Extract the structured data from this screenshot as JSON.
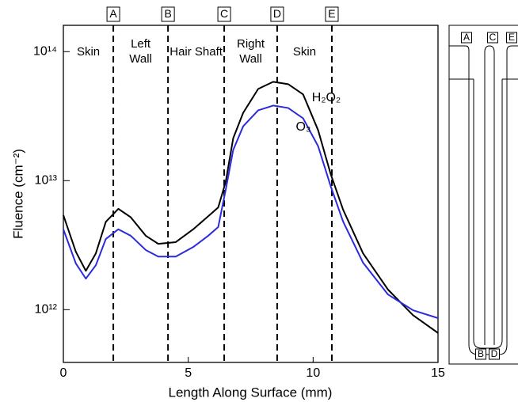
{
  "chart_data": {
    "type": "line",
    "x_label": "Length Along Surface  (mm)",
    "y_label": "Fluence (cm⁻²)",
    "log_y": true,
    "xlim": [
      0,
      15
    ],
    "xticks": [
      0,
      5,
      10,
      15
    ],
    "ylim": [
      390000000000.0,
      160000000000000.0
    ],
    "yticks": [
      {
        "value": 1000000000000.0,
        "label": "10¹²"
      },
      {
        "value": 10000000000000.0,
        "label": "10¹³"
      },
      {
        "value": 100000000000000.0,
        "label": "10¹⁴"
      }
    ],
    "markers": [
      {
        "x": 2.0,
        "label": "A"
      },
      {
        "x": 4.19,
        "label": "B"
      },
      {
        "x": 6.44,
        "label": "C"
      },
      {
        "x": 8.56,
        "label": "D"
      },
      {
        "x": 10.75,
        "label": "E"
      }
    ],
    "regions": [
      [
        "Skin"
      ],
      [
        "Left",
        "Wall"
      ],
      [
        "Hair Shaft"
      ],
      [
        "Right",
        "Wall"
      ],
      [
        "Skin"
      ]
    ],
    "x": [
      0,
      0.5,
      0.9,
      1.3,
      1.7,
      2.2,
      2.7,
      3.3,
      3.8,
      4.5,
      5.2,
      5.8,
      6.2,
      6.5,
      6.8,
      7.2,
      7.8,
      8.4,
      9.0,
      9.6,
      10.2,
      10.7,
      11.2,
      12,
      13,
      14,
      15
    ],
    "series": [
      {
        "name": "H₂O₂",
        "color": "#000000",
        "values": [
          5400000000000.0,
          2810000000000.0,
          2000000000000.0,
          2730000000000.0,
          4800000000000.0,
          6050000000000.0,
          5200000000000.0,
          3740000000000.0,
          3240000000000.0,
          3340000000000.0,
          4200000000000.0,
          5300000000000.0,
          6200000000000.0,
          9800000000000.0,
          21300000000000.0,
          33600000000000.0,
          51400000000000.0,
          58400000000000.0,
          56000000000000.0,
          46600000000000.0,
          24600000000000.0,
          11300000000000.0,
          5960000000000.0,
          2730000000000.0,
          1430000000000.0,
          906000000000.0,
          660000000000.0
        ]
      },
      {
        "name": "O₃",
        "color": "#2b2bdd",
        "values": [
          4200000000000.0,
          2280000000000.0,
          1740000000000.0,
          2210000000000.0,
          3530000000000.0,
          4200000000000.0,
          3740000000000.0,
          2900000000000.0,
          2580000000000.0,
          2580000000000.0,
          3060000000000.0,
          3740000000000.0,
          4370000000000.0,
          8500000000000.0,
          17300000000000.0,
          26400000000000.0,
          35100000000000.0,
          38200000000000.0,
          36600000000000.0,
          30400000000000.0,
          18500000000000.0,
          9100000000000.0,
          4820000000000.0,
          2310000000000.0,
          1310000000000.0,
          990000000000.0,
          860000000000.0
        ]
      }
    ]
  },
  "inset": {
    "top_labels": [
      "A",
      "C",
      "E"
    ],
    "bottom_labels": [
      "B",
      "D"
    ]
  }
}
